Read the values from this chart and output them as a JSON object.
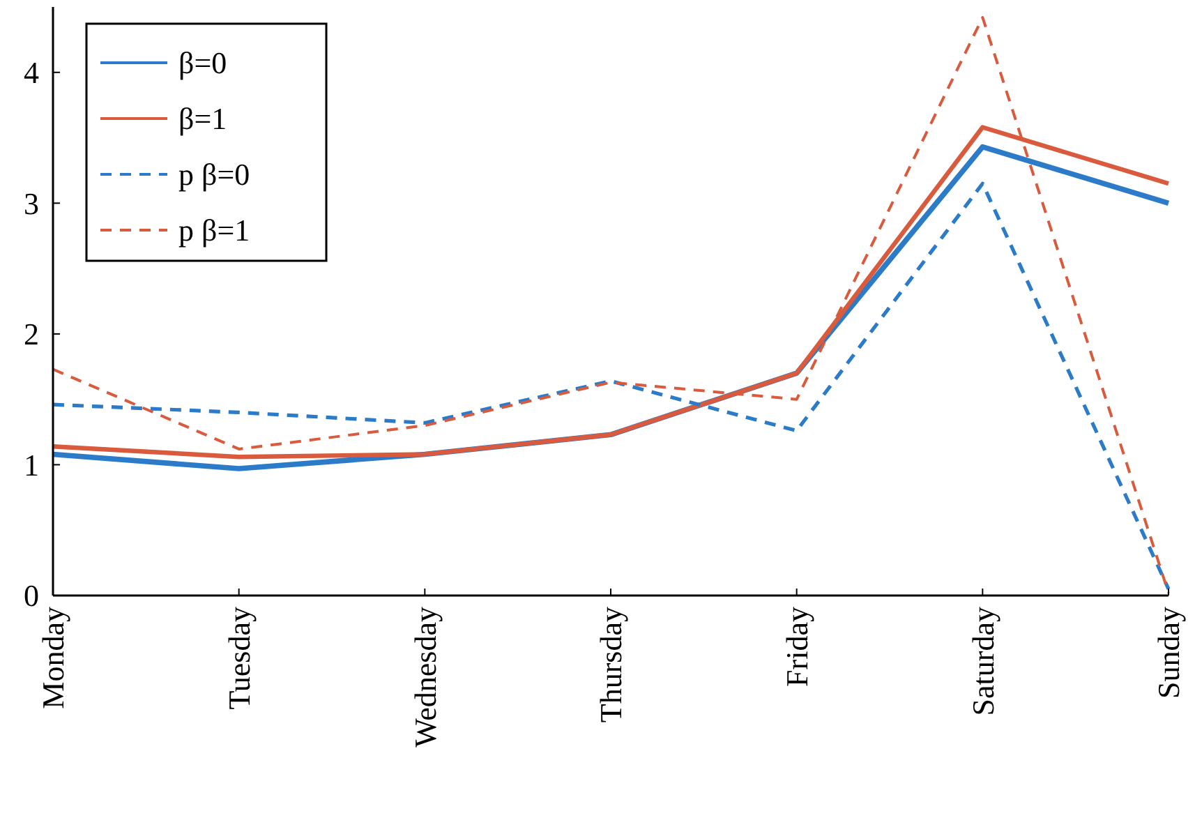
{
  "chart_data": {
    "type": "line",
    "categories": [
      "Monday",
      "Tuesday",
      "Wednesday",
      "Thursday",
      "Friday",
      "Saturday",
      "Sunday"
    ],
    "series": [
      {
        "name": "β=0",
        "color": "#2b7bc9",
        "line_style": "solid",
        "values": [
          1.08,
          0.97,
          1.08,
          1.23,
          1.7,
          3.43,
          3.0
        ]
      },
      {
        "name": "β=1",
        "color": "#d95a3c",
        "line_style": "solid",
        "values": [
          1.14,
          1.06,
          1.08,
          1.23,
          1.7,
          3.58,
          3.15
        ]
      },
      {
        "name": "p β=0",
        "color": "#2b7bc9",
        "line_style": "dashed",
        "values": [
          1.46,
          1.4,
          1.32,
          1.64,
          1.26,
          3.15,
          0.05
        ]
      },
      {
        "name": "p β=1",
        "color": "#d95a3c",
        "line_style": "dashed",
        "values": [
          1.73,
          1.12,
          1.3,
          1.63,
          1.5,
          4.42,
          0.02
        ]
      }
    ],
    "ylim": [
      0,
      4.5
    ],
    "yticks": [
      0,
      1,
      2,
      3,
      4
    ],
    "grid": false,
    "legend": "top left",
    "marker": "none"
  }
}
